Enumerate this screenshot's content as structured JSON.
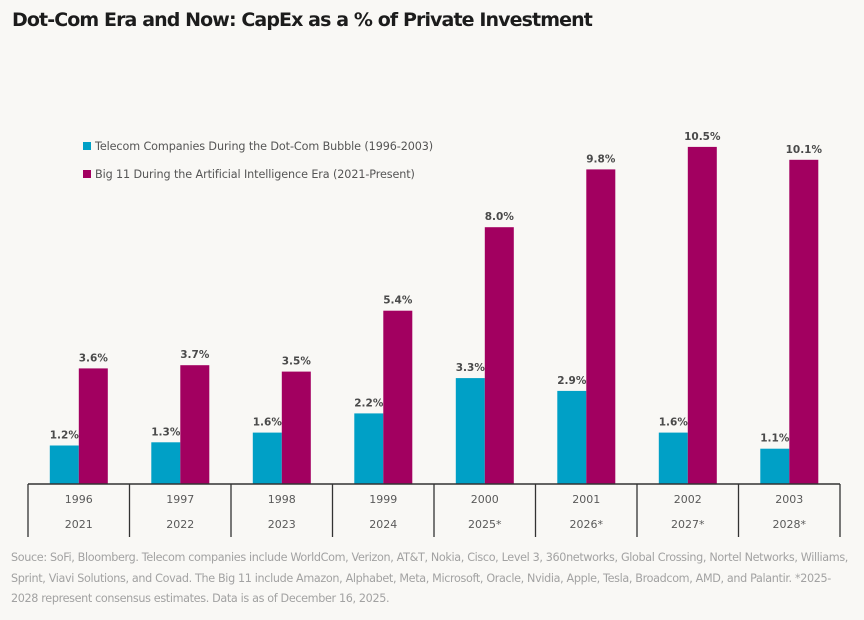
{
  "chart_data": {
    "type": "bar",
    "title": "Dot-Com Era and Now: CapEx as a % of Private Investment",
    "xlabel": "",
    "ylabel": "",
    "ylim": [
      0,
      11
    ],
    "grid": false,
    "legend_position": "top-left",
    "categories": [
      {
        "top": "1996",
        "bottom": "2021"
      },
      {
        "top": "1997",
        "bottom": "2022"
      },
      {
        "top": "1998",
        "bottom": "2023"
      },
      {
        "top": "1999",
        "bottom": "2024"
      },
      {
        "top": "2000",
        "bottom": "2025*"
      },
      {
        "top": "2001",
        "bottom": "2026*"
      },
      {
        "top": "2002",
        "bottom": "2027*"
      },
      {
        "top": "2003",
        "bottom": "2028*"
      }
    ],
    "series": [
      {
        "name": "Telecom Companies During the Dot-Com Bubble (1996-2003)",
        "color": "#00a0c6",
        "values": [
          1.2,
          1.3,
          1.6,
          2.2,
          3.3,
          2.9,
          1.6,
          1.1
        ],
        "labels": [
          "1.2%",
          "1.3%",
          "1.6%",
          "2.2%",
          "3.3%",
          "2.9%",
          "1.6%",
          "1.1%"
        ]
      },
      {
        "name": "Big 11 During the Artificial Intelligence Era (2021-Present)",
        "color": "#a20060",
        "values": [
          3.6,
          3.7,
          3.5,
          5.4,
          8.0,
          9.8,
          10.5,
          10.1
        ],
        "labels": [
          "3.6%",
          "3.7%",
          "3.5%",
          "5.4%",
          "8.0%",
          "9.8%",
          "10.5%",
          "10.1%"
        ]
      }
    ]
  },
  "source_note": "Souce: SoFi, Bloomberg. Telecom companies include WorldCom, Verizon, AT&T, Nokia, Cisco, Level 3, 360networks, Global Crossing, Nortel Networks, Williams, Sprint, Viavi Solutions, and Covad. The Big 11 include Amazon, Alphabet, Meta, Microsoft, Oracle, Nvidia, Apple, Tesla, Broadcom, AMD, and Palantir.  *2025-2028 represent consensus estimates. Data is as of December 16, 2025."
}
